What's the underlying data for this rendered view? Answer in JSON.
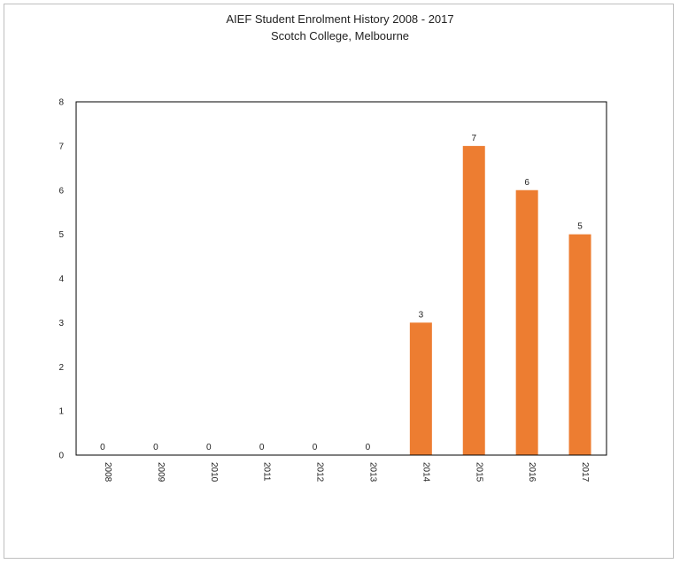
{
  "chart_data": {
    "type": "bar",
    "title": "AIEF Student Enrolment History 2008 - 2017",
    "subtitle": "Scotch College, Melbourne",
    "categories": [
      "2008",
      "2009",
      "2010",
      "2011",
      "2012",
      "2013",
      "2014",
      "2015",
      "2016",
      "2017"
    ],
    "values": [
      0,
      0,
      0,
      0,
      0,
      0,
      3,
      7,
      6,
      5
    ],
    "ylim": [
      0,
      8
    ],
    "yticks": [
      0,
      1,
      2,
      3,
      4,
      5,
      6,
      7,
      8
    ],
    "xlabel": "",
    "ylabel": "",
    "bar_color": "#ed7d31",
    "grid": false,
    "legend": "none",
    "data_labels": true,
    "x_tick_rotation": "vertical"
  }
}
